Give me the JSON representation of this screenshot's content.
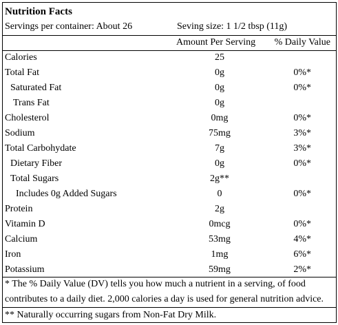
{
  "title": "Nutrition Facts",
  "servings": "Servings per container: About 26",
  "serving_size": "Seving size: 1 1/2 tbsp (11g)",
  "header": {
    "amount": "Amount Per Serving",
    "dv": "% Daily Value"
  },
  "rows": [
    {
      "name": "Calories",
      "amount": "25",
      "level": 0
    },
    {
      "name": "Total Fat",
      "amount": "0g",
      "dv": "0%*",
      "level": 0
    },
    {
      "name": "Saturated Fat",
      "amount": "0g",
      "dv": "0%*",
      "level": 1
    },
    {
      "name": "Trans Fat",
      "amount": "0g",
      "level": 2
    },
    {
      "name": "Cholesterol",
      "amount": "0mg",
      "dv": "0%*",
      "level": 0
    },
    {
      "name": "Sodium",
      "amount": "75mg",
      "dv": "3%*",
      "level": 0
    },
    {
      "name": "Total Carbohydate",
      "amount": "7g",
      "dv": "3%*",
      "level": 0
    },
    {
      "name": "Dietary Fiber",
      "amount": "0g",
      "dv": "0%*",
      "level": 1
    },
    {
      "name": "Total Sugars",
      "amount": "2g**",
      "level": 1
    },
    {
      "name": "Includes 0g Added Sugars",
      "amount": "0",
      "dv": "0%*",
      "level": 3
    },
    {
      "name": "Protein",
      "amount": "2g",
      "level": 0
    },
    {
      "name": "Vitamin D",
      "amount": "0mcg",
      "dv": "0%*",
      "level": 0
    },
    {
      "name": "Calcium",
      "amount": "53mg",
      "dv": "4%*",
      "level": 0
    },
    {
      "name": "Iron",
      "amount": "1mg",
      "dv": "6%*",
      "level": 0
    },
    {
      "name": "Potassium",
      "amount": "59mg",
      "dv": "2%*",
      "level": 0
    }
  ],
  "footnotes": [
    "* The % Daily Value (DV) tells you how much a nutrient in a serving, of food",
    "contributes to a daily diet. 2,000 calories a day is used for general nutrition advice.",
    "** Naturally occurring sugars from Non-Fat Dry Milk."
  ]
}
